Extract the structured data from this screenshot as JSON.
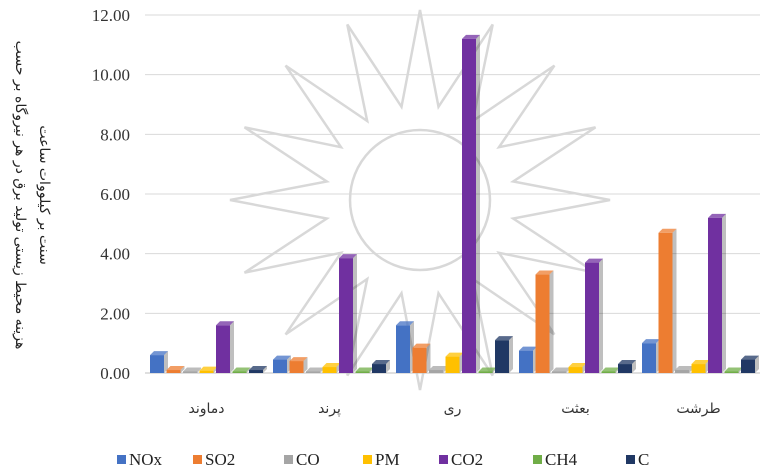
{
  "chart_data": {
    "type": "bar",
    "ylabel_lines": [
      "هزینه محیط زیستی تولید برق در هر نیروگاه بر حسب",
      "سنت بر کیلووات ساعت"
    ],
    "categories": [
      "دماوند",
      "پرند",
      "ری",
      "بعثت",
      "طرشت"
    ],
    "ylim": [
      0,
      12
    ],
    "yticks": [
      "0.00",
      "2.00",
      "4.00",
      "6.00",
      "8.00",
      "10.00",
      "12.00"
    ],
    "grid": true,
    "legend_position": "bottom",
    "series": [
      {
        "name": "NOx",
        "color": "#4472c4",
        "values": [
          0.6,
          0.45,
          1.6,
          0.75,
          1.0
        ]
      },
      {
        "name": "SO2",
        "color": "#ed7d31",
        "values": [
          0.1,
          0.4,
          0.85,
          3.3,
          4.7
        ]
      },
      {
        "name": "CO",
        "color": "#a5a5a5",
        "values": [
          0.02,
          0.05,
          0.1,
          0.05,
          0.1
        ]
      },
      {
        "name": "PM",
        "color": "#ffc000",
        "values": [
          0.08,
          0.2,
          0.55,
          0.2,
          0.3
        ]
      },
      {
        "name": "CO2",
        "color": "#7030a0",
        "values": [
          1.6,
          3.85,
          11.2,
          3.7,
          5.2
        ]
      },
      {
        "name": "CH4",
        "color": "#70ad47",
        "values": [
          0.01,
          0.02,
          0.03,
          0.02,
          0.03
        ]
      },
      {
        "name": "C",
        "color": "#203864",
        "values": [
          0.1,
          0.3,
          1.1,
          0.3,
          0.45
        ]
      }
    ]
  }
}
